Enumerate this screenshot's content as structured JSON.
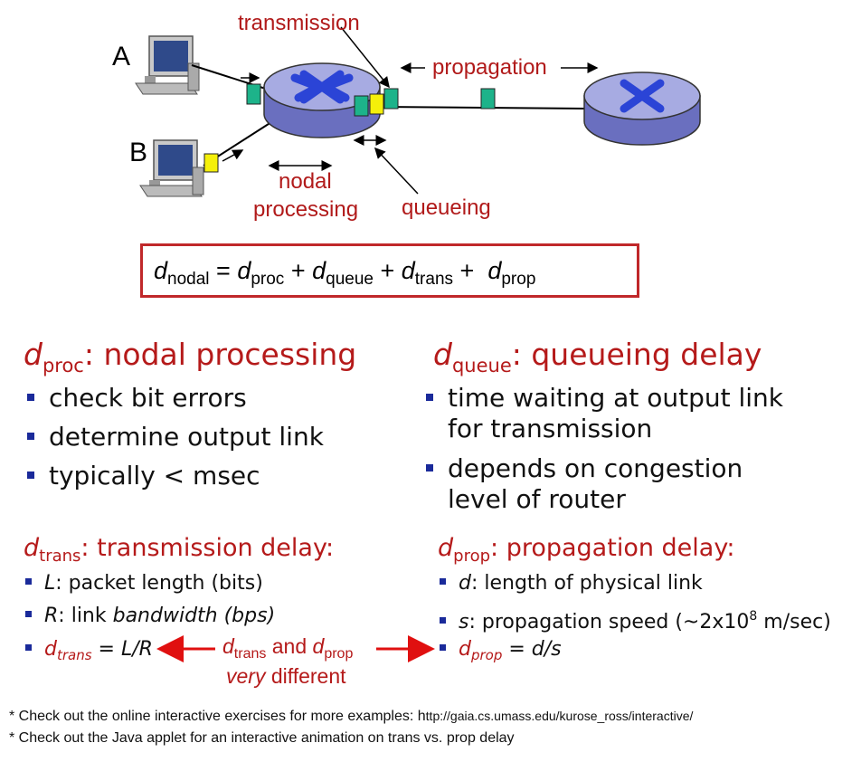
{
  "diagram": {
    "host_a_label": "A",
    "host_b_label": "B",
    "transmission_label": "transmission",
    "propagation_label": "propagation",
    "nodal_processing_label_line1": "nodal",
    "nodal_processing_label_line2": "processing",
    "queueing_label": "queueing",
    "colors": {
      "packet_green": "#1db38a",
      "packet_yellow": "#f5f00a",
      "router_fill": "#8f93d6",
      "router_x": "#2b44d6",
      "label_red": "#b11a1a"
    }
  },
  "formula": {
    "d": "d",
    "nodal": "nodal",
    "eq": " = ",
    "proc": "proc",
    "queue": "queue",
    "trans": "trans",
    "prop": "prop",
    "plus": " + "
  },
  "proc_section": {
    "heading_d": "d",
    "heading_sub": "proc",
    "heading_rest": ": nodal processing",
    "bullets": [
      "check bit errors",
      "determine output link",
      "typically < msec"
    ]
  },
  "queue_section": {
    "heading_d": "d",
    "heading_sub": "queue",
    "heading_rest": ": queueing delay",
    "bullet1_line1": "time waiting at output link",
    "bullet1_line2": "for transmission",
    "bullet2_line1": "depends on congestion",
    "bullet2_line2": "level of router"
  },
  "trans_section": {
    "heading_d": "d",
    "heading_sub": "trans",
    "heading_rest": ": transmission delay:",
    "b1_var": "L",
    "b1_rest": ": packet length (bits)",
    "b2_var": "R",
    "b2_mid": ": link ",
    "b2_italic": "bandwidth (bps)",
    "b3_d": "d",
    "b3_sub": "trans",
    "b3_rest": " = L/R"
  },
  "prop_section": {
    "heading_d": "d",
    "heading_sub": "prop",
    "heading_rest": ": propagation delay:",
    "b1_var": "d",
    "b1_rest": ": length of physical link",
    "b2_var": "s",
    "b2_rest": ": propagation speed (~2x10",
    "b2_sup": "8",
    "b2_end": " m/sec)",
    "b3_d": "d",
    "b3_sub": "prop",
    "b3_rest": " = d/s"
  },
  "comparison": {
    "d1": "d",
    "sub1": "trans",
    "and": " and ",
    "d2": "d",
    "sub2": "prop",
    "line2_italic": "very",
    "line2_rest": " different"
  },
  "notes": {
    "note1": "* Check out the online interactive exercises for more examples: h",
    "note1_url": "ttp://gaia.cs.umass.edu/kurose_ross/interactive/",
    "note2": "* Check out the Java applet for an interactive animation on trans vs. prop delay"
  }
}
